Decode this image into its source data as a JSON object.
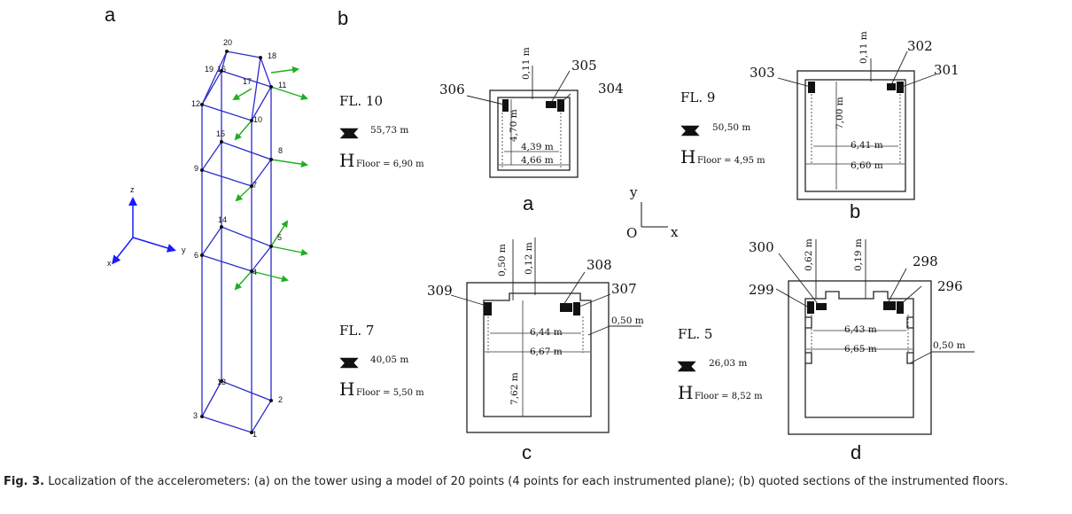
{
  "panel_labels": {
    "a": "a",
    "b": "b"
  },
  "model": {
    "node_labels": {
      "n1": "1",
      "n2": "2",
      "n3": "3",
      "n4": "4",
      "n5": "5",
      "n6": "6",
      "n7": "7",
      "n8": "8",
      "n9": "9",
      "n10": "10",
      "n11": "11",
      "n12": "12",
      "n13": "13",
      "n14": "14",
      "n15": "15",
      "n16": "16",
      "n17": "17",
      "n18": "18",
      "n19": "19",
      "n20": "20"
    },
    "axes": {
      "z": "z",
      "y": "y",
      "x": "x"
    }
  },
  "floors": {
    "fl10": {
      "label": "FL. 10",
      "elevation": "55,73 m",
      "h_big": "H",
      "h_floor": "Floor = 6,90 m"
    },
    "fl9": {
      "label": "FL. 9",
      "elevation": "50,50 m",
      "h_big": "H",
      "h_floor": "Floor = 4,95 m"
    },
    "fl7": {
      "label": "FL. 7",
      "elevation": "40,05 m",
      "h_big": "H",
      "h_floor": "Floor = 5,50 m"
    },
    "fl5": {
      "label": "FL. 5",
      "elevation": "26,03 m",
      "h_big": "H",
      "h_floor": "Floor = 8,52 m"
    }
  },
  "sections": {
    "a": {
      "letter": "a",
      "sensors": {
        "s306": "306",
        "s305": "305",
        "s304": "304"
      },
      "dims": {
        "d011": "0,11 m",
        "d470": "4,70 m",
        "d439": "4,39 m",
        "d466": "4,66 m"
      }
    },
    "b": {
      "letter": "b",
      "sensors": {
        "s303": "303",
        "s302": "302",
        "s301": "301"
      },
      "dims": {
        "d011": "0,11 m",
        "d700": "7,00 m",
        "d641": "6,41 m",
        "d660": "6,60 m"
      }
    },
    "c": {
      "letter": "c",
      "sensors": {
        "s309": "309",
        "s308": "308",
        "s307": "307"
      },
      "dims": {
        "d050v": "0,50 m",
        "d012": "0,12 m",
        "d050": "0,50 m",
        "d644": "6,44 m",
        "d667": "6,67 m",
        "d762": "7,62 m"
      }
    },
    "d": {
      "letter": "d",
      "sensors": {
        "s300": "300",
        "s299": "299",
        "s298": "298",
        "s296": "296"
      },
      "dims": {
        "d062": "0,62 m",
        "d019": "0,19 m",
        "d050": "0,50 m",
        "d643": "6,43 m",
        "d665": "6,65 m"
      }
    }
  },
  "orientation": {
    "y": "y",
    "o": "O",
    "x": "x"
  },
  "caption": {
    "prefix": "Fig. 3.",
    "text": " Localization of the accelerometers: (a) on the tower using a model of 20 points (4 points for each instrumented plane); (b) quoted sections of the instrumented floors."
  },
  "colors": {
    "frame": "#2b2bd0",
    "arrow": "#1fae1f",
    "axis": "#1a1aff"
  }
}
